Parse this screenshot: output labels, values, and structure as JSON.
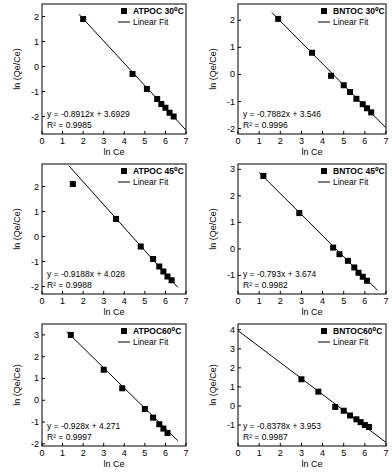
{
  "chart_data": [
    {
      "type": "scatter",
      "x_label": "ln Ce",
      "y_label": "ln (Qe/Ce)",
      "legend": "upper right",
      "xlim": [
        0,
        7
      ],
      "xticks": [
        0,
        1,
        2,
        3,
        4,
        5,
        6,
        7
      ],
      "ylim": [
        -2.7,
        2.5
      ],
      "yticks": [
        -2,
        -1,
        0,
        1,
        2
      ],
      "annotations": [
        "y = -0.8912x + 3.6929",
        "R² = 0.9985"
      ],
      "series": [
        {
          "name": "ATPOC 30⁰C",
          "type": "scatter",
          "marker": "square",
          "color": "#000000",
          "x": [
            2.0,
            4.4,
            5.1,
            5.6,
            5.8,
            6.0,
            6.2,
            6.4
          ],
          "values": [
            1.9,
            -0.3,
            -0.9,
            -1.3,
            -1.5,
            -1.65,
            -1.85,
            -2.0
          ]
        },
        {
          "name": "Linear Fit",
          "type": "line",
          "line_style": "solid",
          "color": "#000000",
          "x": [
            1.8,
            7.0
          ],
          "values": [
            2.089,
            -2.545
          ]
        }
      ]
    },
    {
      "type": "scatter",
      "x_label": "ln Ce",
      "y_label": "ln (Qe/Ce)",
      "legend": "upper right",
      "xlim": [
        0,
        7
      ],
      "xticks": [
        0,
        1,
        2,
        3,
        4,
        5,
        6,
        7
      ],
      "ylim": [
        -2.2,
        2.6
      ],
      "yticks": [
        -2,
        -1,
        0,
        1,
        2
      ],
      "annotations": [
        "y = -0.7882x + 3.546",
        "R² = 0.9996"
      ],
      "series": [
        {
          "name": "BNTOC 30⁰C",
          "type": "scatter",
          "marker": "square",
          "color": "#000000",
          "x": [
            1.9,
            3.5,
            4.4,
            5.0,
            5.3,
            5.6,
            5.9,
            6.1,
            6.3
          ],
          "values": [
            2.05,
            0.8,
            -0.05,
            -0.4,
            -0.65,
            -0.9,
            -1.1,
            -1.25,
            -1.4
          ]
        },
        {
          "name": "Linear Fit",
          "type": "line",
          "line_style": "solid",
          "color": "#000000",
          "x": [
            1.6,
            7.0
          ],
          "values": [
            2.285,
            -1.971
          ]
        }
      ]
    },
    {
      "type": "scatter",
      "x_label": "ln Ce",
      "y_label": "ln (Qe/Ce)",
      "legend": "upper right",
      "xlim": [
        0,
        7
      ],
      "xticks": [
        0,
        1,
        2,
        3,
        4,
        5,
        6,
        7
      ],
      "ylim": [
        -2.3,
        2.9
      ],
      "yticks": [
        -2,
        -1,
        0,
        1,
        2
      ],
      "annotations": [
        "y = -0.9188x + 4.028",
        "R² = 0.9988"
      ],
      "series": [
        {
          "name": "ATPOC 45⁰C",
          "type": "scatter",
          "marker": "square",
          "color": "#000000",
          "x": [
            1.5,
            3.6,
            4.8,
            5.4,
            5.7,
            5.9,
            6.1,
            6.3
          ],
          "values": [
            2.1,
            0.7,
            -0.4,
            -0.9,
            -1.2,
            -1.4,
            -1.6,
            -1.75
          ]
        },
        {
          "name": "Linear Fit",
          "type": "line",
          "line_style": "solid",
          "color": "#000000",
          "x": [
            1.3,
            6.6
          ],
          "values": [
            2.834,
            -2.036
          ]
        }
      ]
    },
    {
      "type": "scatter",
      "x_label": "ln Ce",
      "y_label": "ln (Qe/Ce)",
      "legend": "upper right",
      "xlim": [
        0,
        7
      ],
      "xticks": [
        0,
        1,
        2,
        3,
        4,
        5,
        6,
        7
      ],
      "ylim": [
        -1.7,
        3.2
      ],
      "yticks": [
        -1,
        0,
        1,
        2,
        3
      ],
      "annotations": [
        "y = -0.793x + 3.674",
        "R² = 0.9982"
      ],
      "series": [
        {
          "name": "BNTOC 45⁰C",
          "type": "scatter",
          "marker": "square",
          "color": "#000000",
          "x": [
            1.2,
            2.9,
            4.5,
            4.8,
            5.2,
            5.5,
            5.7,
            5.9,
            6.1
          ],
          "values": [
            2.75,
            1.35,
            0.05,
            -0.2,
            -0.45,
            -0.7,
            -0.9,
            -1.05,
            -1.2
          ]
        },
        {
          "name": "Linear Fit",
          "type": "line",
          "line_style": "solid",
          "color": "#000000",
          "x": [
            1.0,
            6.6
          ],
          "values": [
            2.881,
            -1.56
          ]
        }
      ]
    },
    {
      "type": "scatter",
      "x_label": "ln Ce",
      "y_label": "ln (Qe/Ce)",
      "legend": "upper right",
      "xlim": [
        0,
        7
      ],
      "xticks": [
        0,
        1,
        2,
        3,
        4,
        5,
        6,
        7
      ],
      "ylim": [
        -2.1,
        3.5
      ],
      "yticks": [
        -2,
        -1,
        0,
        1,
        2,
        3
      ],
      "annotations": [
        "y = -0.928x + 4.271",
        "R² = 0.9997"
      ],
      "series": [
        {
          "name": "ATPOC60⁰C",
          "type": "scatter",
          "marker": "square",
          "color": "#000000",
          "x": [
            1.4,
            3.0,
            3.9,
            5.0,
            5.4,
            5.7,
            5.9,
            6.1
          ],
          "values": [
            3.0,
            1.4,
            0.55,
            -0.4,
            -0.8,
            -1.1,
            -1.3,
            -1.5
          ]
        },
        {
          "name": "Linear Fit",
          "type": "line",
          "line_style": "solid",
          "color": "#000000",
          "x": [
            1.2,
            6.6
          ],
          "values": [
            3.157,
            -1.854
          ]
        }
      ]
    },
    {
      "type": "scatter",
      "x_label": "ln Ce",
      "y_label": "ln (Qe/Ce)",
      "legend": "upper right",
      "xlim": [
        0,
        7
      ],
      "xticks": [
        0,
        1,
        2,
        3,
        4,
        5,
        6,
        7
      ],
      "ylim": [
        -2.1,
        4.3
      ],
      "yticks": [
        -1,
        0,
        1,
        2,
        3,
        4
      ],
      "annotations": [
        "y = -0.8378x + 3.953",
        "R² = 0.9987"
      ],
      "series": [
        {
          "name": "BNTOC60⁰C",
          "type": "scatter",
          "marker": "square",
          "color": "#000000",
          "x": [
            3.0,
            3.8,
            4.6,
            5.0,
            5.3,
            5.6,
            5.8,
            6.0,
            6.2
          ],
          "values": [
            1.4,
            0.75,
            -0.05,
            -0.25,
            -0.5,
            -0.7,
            -0.85,
            -1.0,
            -1.1
          ]
        },
        {
          "name": "Linear Fit",
          "type": "line",
          "line_style": "solid",
          "color": "#000000",
          "x": [
            0,
            7.0
          ],
          "values": [
            3.953,
            -1.912
          ]
        }
      ]
    }
  ]
}
